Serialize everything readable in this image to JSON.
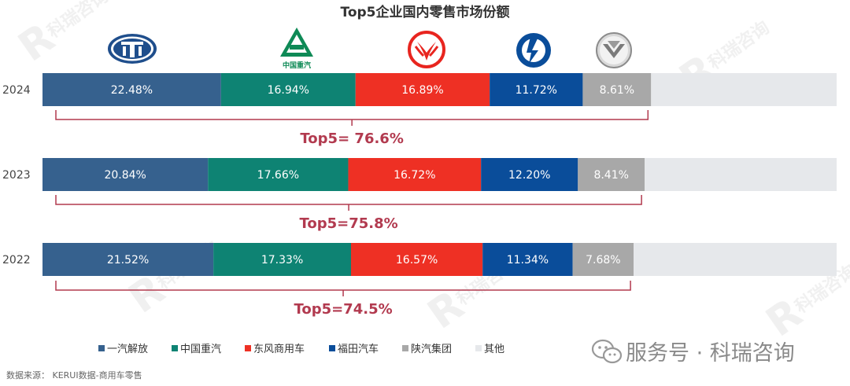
{
  "chart_data": {
    "type": "bar",
    "orientation": "horizontal-stacked",
    "title": "Top5企业国内零售市场份额",
    "categories": [
      "2024",
      "2023",
      "2022"
    ],
    "series": [
      {
        "name": "一汽解放",
        "color": "#36618E",
        "values": [
          22.48,
          20.84,
          21.52
        ],
        "labels": [
          "22.48%",
          "20.84%",
          "21.52%"
        ]
      },
      {
        "name": "中国重汽",
        "color": "#0E8373",
        "values": [
          16.94,
          17.66,
          17.33
        ],
        "labels": [
          "16.94%",
          "17.66%",
          "17.33%"
        ]
      },
      {
        "name": "东风商用车",
        "color": "#EE3024",
        "values": [
          16.89,
          16.72,
          16.57
        ],
        "labels": [
          "16.89%",
          "16.72%",
          "16.57%"
        ]
      },
      {
        "name": "福田汽车",
        "color": "#0A4D9A",
        "values": [
          11.72,
          12.2,
          11.34
        ],
        "labels": [
          "11.72%",
          "12.20%",
          "11.34%"
        ]
      },
      {
        "name": "陕汽集团",
        "color": "#A8A8A8",
        "values": [
          8.61,
          8.41,
          7.68
        ],
        "labels": [
          "8.61%",
          "8.41%",
          "7.68%"
        ]
      },
      {
        "name": "其他",
        "color": "#E6E8EB",
        "values": [
          23.36,
          24.17,
          25.56
        ],
        "labels": [
          "",
          "",
          ""
        ]
      }
    ],
    "totals_label": [
      "Top5= 76.6%",
      "Top5=75.8%",
      "Top5=74.5%"
    ],
    "xlim": [
      0,
      100
    ],
    "grid": false,
    "legend_position": "bottom-left"
  },
  "source": "数据来源： KERUI数据-商用车零售",
  "watermark": {
    "brand": "科瑞咨询",
    "account": "服务号 · 科瑞咨询"
  },
  "logos": [
    "faw-logo",
    "sinotruk-logo",
    "dongfeng-logo",
    "foton-logo",
    "shacman-logo"
  ],
  "logo_text": {
    "sinotruk": "中国重汽"
  },
  "colors": {
    "bracket": "#B23A4F",
    "top5_text": "#B23A4F",
    "axis_text": "#444444"
  }
}
